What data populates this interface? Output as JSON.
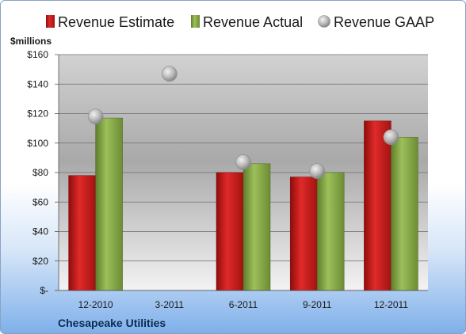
{
  "company": "Chesapeake Utilities",
  "colors": {
    "estimate": "#cc1f1f",
    "actual": "#8cb04a",
    "gaap": "#a8a8a8"
  },
  "chart_data": {
    "type": "bar",
    "unit_label": "$millions",
    "categories": [
      "12-2010",
      "3-2011",
      "6-2011",
      "9-2011",
      "12-2011"
    ],
    "series": [
      {
        "name": "Revenue Estimate",
        "kind": "bar",
        "values": [
          78,
          null,
          80,
          77,
          115
        ]
      },
      {
        "name": "Revenue Actual",
        "kind": "bar",
        "values": [
          117,
          null,
          86,
          80,
          104
        ]
      },
      {
        "name": "Revenue GAAP",
        "kind": "marker",
        "values": [
          118,
          147,
          87,
          81,
          104
        ]
      }
    ],
    "ylim": [
      0,
      160
    ],
    "yticks": [
      0,
      20,
      40,
      60,
      80,
      100,
      120,
      140,
      160
    ],
    "ytick_labels": [
      "$-",
      "$20",
      "$40",
      "$60",
      "$80",
      "$100",
      "$120",
      "$140",
      "$160"
    ],
    "grid": true,
    "legend_position": "top"
  }
}
